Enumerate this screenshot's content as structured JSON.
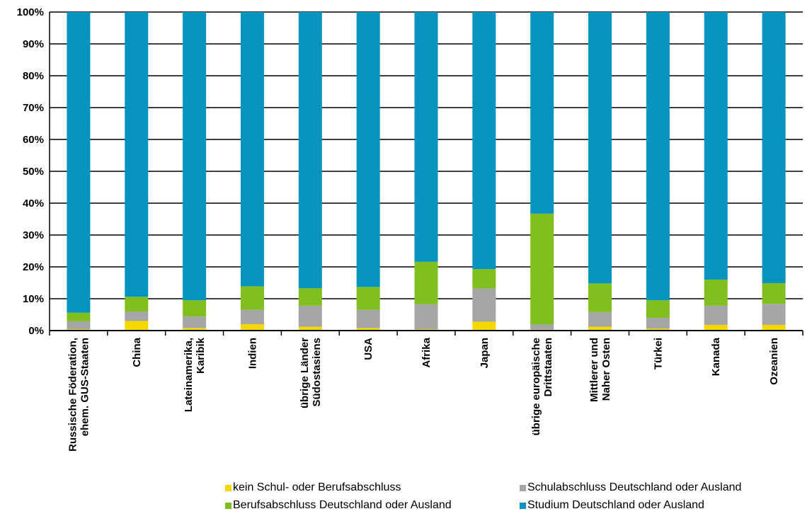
{
  "chart_data": {
    "type": "bar",
    "stacked": true,
    "normalized": true,
    "categories": [
      [
        "Russische Föderation,",
        "ehem. GUS-Staaten"
      ],
      [
        "China"
      ],
      [
        "Lateinamerika,",
        "Karibik"
      ],
      [
        "Indien"
      ],
      [
        "übrige Länder",
        "Südostasiens"
      ],
      [
        "USA"
      ],
      [
        "Afrika"
      ],
      [
        "Japan"
      ],
      [
        "übrige europäische",
        "Drittstaaten"
      ],
      [
        "Mittlerer und",
        "Naher Osten"
      ],
      [
        "Türkei"
      ],
      [
        "Kanada"
      ],
      [
        "Ozeanien"
      ]
    ],
    "series": [
      {
        "name": "kein Schul- oder Berufsabschluss",
        "color": "#f5d800",
        "values": [
          0.4,
          3.0,
          0.8,
          2.0,
          1.2,
          0.8,
          0.4,
          2.8,
          0.3,
          1.2,
          0.6,
          1.8,
          1.8
        ]
      },
      {
        "name": "Schulabschluss Deutschland oder Ausland",
        "color": "#a6a6a6",
        "values": [
          2.5,
          3.0,
          3.6,
          4.5,
          6.6,
          5.7,
          7.9,
          10.4,
          1.6,
          4.6,
          3.4,
          6.0,
          6.6
        ]
      },
      {
        "name": "Berufsabschluss Deutschland oder Ausland",
        "color": "#80bf1f",
        "values": [
          2.7,
          4.6,
          5.1,
          7.4,
          5.5,
          7.2,
          13.3,
          6.1,
          34.8,
          9.0,
          5.5,
          8.2,
          6.5
        ]
      },
      {
        "name": "Studium Deutschland oder Ausland",
        "color": "#0593bf",
        "values": [
          94.4,
          89.4,
          90.5,
          86.1,
          86.7,
          86.3,
          78.4,
          80.7,
          63.3,
          85.2,
          90.5,
          84.0,
          85.1
        ]
      }
    ],
    "ylim": [
      0,
      100
    ],
    "yticks": [
      "0%",
      "10%",
      "20%",
      "30%",
      "40%",
      "50%",
      "60%",
      "70%",
      "80%",
      "90%",
      "100%"
    ],
    "grid": true,
    "legend_position": "bottom",
    "legend_rows": [
      [
        0,
        1
      ],
      [
        2,
        3
      ]
    ]
  }
}
